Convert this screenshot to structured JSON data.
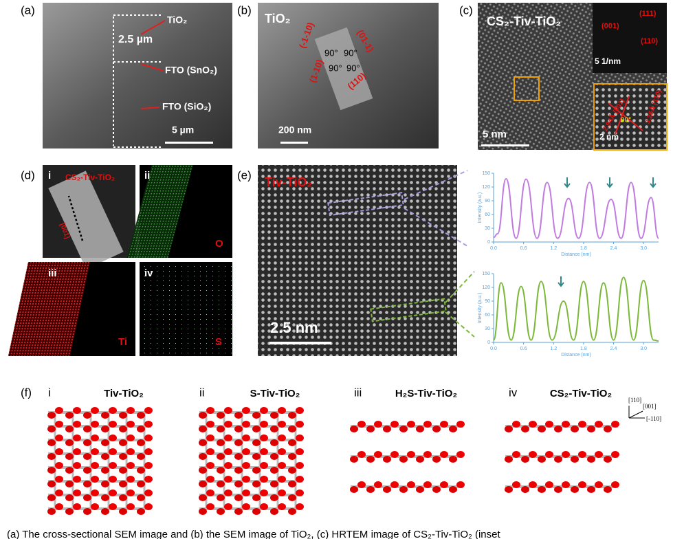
{
  "panel_a": {
    "label": "(a)",
    "layer_top": "TiO₂",
    "thickness": "2.5 µm",
    "layer_mid": "FTO (SnO₂)",
    "layer_bottom": "FTO (SiO₂)",
    "scale": "5 µm"
  },
  "panel_b": {
    "label": "(b)",
    "title": "TiO₂",
    "facets": [
      "(-1-10)",
      "(1-10)",
      "(110)",
      "(01-1)"
    ],
    "angles": [
      "90°",
      "90°",
      "90°",
      "90°"
    ],
    "scale": "200 nm"
  },
  "panel_c": {
    "label": "(c)",
    "title": "CS₂-Tiv-TiO₂",
    "spots": [
      "(001)",
      "(111)",
      "(110)"
    ],
    "inset_scale": "5 1/nm",
    "d1": "2.94Å (001)",
    "angle": "90°",
    "d2": "3.26Å (110)",
    "zoom_scale": "2 nm",
    "scale": "5 nm"
  },
  "panel_d": {
    "label": "(d)",
    "subpanels": [
      "i",
      "ii",
      "iii",
      "iv"
    ],
    "title": "CS₂-Tiv-TiO₂",
    "direction": "[001]",
    "elements": [
      "O",
      "Ti",
      "S"
    ]
  },
  "panel_e": {
    "label": "(e)",
    "title": "Tiv-TiO₂",
    "scale": "2.5 nm",
    "profiles": [
      {
        "color": "#c07ce0",
        "y_label": "Intensity (a.u.)",
        "x_label": "Distance (nm)",
        "xlim": [
          0,
          3.3
        ],
        "ylim": [
          0,
          150
        ],
        "yticks": [
          0,
          30,
          60,
          90,
          120,
          150
        ],
        "xticks": [
          {
            "value": 0,
            "label": "0.0"
          },
          0.6,
          1.2,
          1.8,
          2.4,
          {
            "value": 3,
            "label": "3.0"
          }
        ],
        "x": [
          0,
          0.08,
          0.25,
          0.45,
          0.65,
          0.87,
          1.07,
          1.28,
          1.5,
          1.7,
          1.92,
          2.12,
          2.35,
          2.55,
          2.75,
          2.95,
          3.15,
          3.3
        ],
        "values": [
          10,
          18,
          138,
          8,
          137,
          8,
          130,
          8,
          95,
          8,
          130,
          8,
          93,
          8,
          130,
          8,
          97,
          8
        ]
      },
      {
        "color": "#7cb83a",
        "y_label": "Intensity (a.u.)",
        "x_label": "Distance (nm)",
        "xlim": [
          0,
          3.3
        ],
        "ylim": [
          0,
          150
        ],
        "yticks": [
          0,
          30,
          60,
          90,
          120,
          150
        ],
        "xticks": [
          {
            "value": 0,
            "label": "0.0"
          },
          0.6,
          1.2,
          1.8,
          2.4,
          {
            "value": 3,
            "label": "3.0"
          }
        ],
        "x": [
          0,
          0.15,
          0.35,
          0.55,
          0.75,
          0.95,
          1.17,
          1.4,
          1.6,
          1.8,
          2.0,
          2.2,
          2.4,
          2.6,
          2.8,
          3.0,
          3.2,
          3.3
        ],
        "values": [
          5,
          130,
          5,
          122,
          5,
          133,
          5,
          90,
          5,
          133,
          5,
          130,
          5,
          142,
          5,
          135,
          5,
          3
        ]
      }
    ]
  },
  "panel_f": {
    "label": "(f)",
    "structures": [
      {
        "index": "i",
        "name": "Tiv-TiO₂"
      },
      {
        "index": "ii",
        "name": "S-Tiv-TiO₂"
      },
      {
        "index": "iii",
        "name": "H₂S-Tiv-TiO₂"
      },
      {
        "index": "iv",
        "name": "CS₂-Tiv-TiO₂"
      }
    ],
    "axes": [
      "[110]",
      "[001]",
      "[-110]"
    ]
  },
  "caption": "(a) The cross-sectional SEM image and (b) the SEM image of TiO₂, (c) HRTEM image of CS₂-Tiv-TiO₂ (inset"
}
